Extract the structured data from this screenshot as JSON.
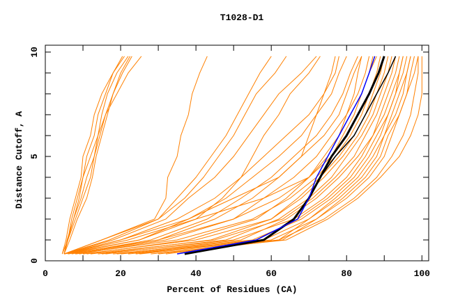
{
  "chart_data": {
    "type": "line",
    "title": "T1028-D1",
    "xlabel": "Percent of Residues (CA)",
    "ylabel": "Distance Cutoff, A",
    "xlim": [
      0,
      101.8
    ],
    "ylim": [
      0,
      10.33
    ],
    "x_ticks": [
      0,
      20,
      40,
      60,
      80,
      100
    ],
    "x_tick_labels": [
      "0",
      "20",
      "40",
      "60",
      "80",
      "100"
    ],
    "x_minor_step": 10,
    "y_ticks": [
      0,
      5,
      10
    ],
    "y_tick_labels": [
      "0",
      "5",
      "10"
    ],
    "y_minor_step": 1,
    "grid": false,
    "colors": {
      "models": "#ff8000",
      "highlight_blue": "#0000ff",
      "highlight_black": "#000000"
    },
    "y_levels": [
      0.33,
      1,
      2,
      3,
      4,
      5,
      6,
      7,
      8,
      9,
      9.8
    ],
    "series_note": "each series gives the percent of residues (x) at each y_levels cutoff",
    "orange_series": [
      [
        5,
        25,
        40,
        58,
        70,
        76,
        79,
        82,
        84,
        86,
        88
      ],
      [
        6,
        30,
        50,
        62,
        70,
        75,
        78,
        80,
        82,
        83,
        84
      ],
      [
        8,
        35,
        55,
        65,
        72,
        77,
        81,
        84,
        86,
        88,
        89
      ],
      [
        10,
        40,
        60,
        68,
        74,
        79,
        83,
        86,
        88,
        90,
        91
      ],
      [
        12,
        45,
        63,
        71,
        77,
        82,
        85,
        88,
        90,
        92,
        93
      ],
      [
        15,
        50,
        66,
        74,
        80,
        84,
        87,
        90,
        92,
        94,
        95
      ],
      [
        18,
        55,
        68,
        76,
        82,
        86,
        89,
        91,
        93,
        95,
        96
      ],
      [
        20,
        58,
        70,
        78,
        84,
        88,
        90,
        92,
        94,
        96,
        97
      ],
      [
        22,
        60,
        72,
        80,
        86,
        90,
        92,
        94,
        96,
        97,
        98
      ],
      [
        25,
        62,
        74,
        82,
        88,
        92,
        95,
        97,
        98,
        99,
        99
      ],
      [
        28,
        64,
        75,
        83,
        89,
        94,
        97,
        99,
        100,
        100,
        100
      ],
      [
        8,
        30,
        45,
        55,
        62,
        68,
        74,
        78,
        80,
        82,
        84
      ],
      [
        6,
        25,
        38,
        48,
        55,
        62,
        68,
        72,
        76,
        78,
        80
      ],
      [
        5,
        20,
        35,
        45,
        52,
        58,
        64,
        70,
        74,
        77,
        78
      ],
      [
        7,
        28,
        43,
        52,
        60,
        66,
        72,
        76,
        79,
        81,
        83
      ],
      [
        9,
        32,
        50,
        58,
        66,
        72,
        76,
        80,
        83,
        85,
        86
      ],
      [
        11,
        38,
        56,
        64,
        70,
        74,
        78,
        81,
        84,
        86,
        87
      ],
      [
        14,
        44,
        60,
        67,
        73,
        78,
        82,
        85,
        87,
        89,
        90
      ],
      [
        16,
        48,
        62,
        70,
        76,
        80,
        84,
        87,
        89,
        91,
        92
      ],
      [
        19,
        52,
        64,
        72,
        78,
        83,
        87,
        89,
        91,
        93,
        94
      ],
      [
        24,
        56,
        67,
        75,
        81,
        85,
        88,
        91,
        93,
        94,
        95
      ],
      [
        30,
        62,
        70,
        77,
        83,
        87,
        90,
        93,
        95,
        96,
        97
      ],
      [
        32,
        63,
        72,
        79,
        85,
        89,
        91,
        94,
        96,
        98,
        99
      ],
      [
        5,
        22,
        40,
        47,
        52,
        55,
        58,
        62,
        65,
        70,
        73
      ],
      [
        5,
        18,
        32,
        38,
        45,
        50,
        54,
        58,
        62,
        68,
        72
      ],
      [
        5,
        20,
        38,
        50,
        62,
        68,
        70,
        72,
        74,
        76,
        77
      ],
      [
        5,
        15,
        30,
        35,
        40,
        44,
        48,
        51,
        54,
        57,
        60
      ],
      [
        5,
        17,
        30,
        37,
        42,
        46,
        50,
        53,
        56,
        61,
        64
      ],
      [
        5,
        15,
        29,
        32,
        32.5,
        35,
        36,
        38,
        39,
        41,
        43
      ],
      [
        4.5,
        5.5,
        6.5,
        8,
        9.5,
        10,
        12,
        13,
        15,
        18,
        20.5
      ],
      [
        4.5,
        6,
        7,
        8.5,
        10,
        11,
        13,
        14,
        16,
        18,
        21
      ],
      [
        5,
        5.8,
        7.5,
        9.5,
        11,
        13,
        14,
        15,
        16.5,
        19,
        22
      ],
      [
        5,
        6,
        8,
        10,
        12,
        13,
        14.5,
        16,
        18,
        20,
        22.5
      ],
      [
        5,
        6.5,
        8.5,
        11,
        12.5,
        13.5,
        15,
        16.5,
        18,
        20.5,
        23
      ],
      [
        5,
        6,
        7.5,
        9,
        10,
        12,
        14,
        16,
        19,
        22,
        25.5
      ]
    ],
    "blue_series": [
      35,
      56,
      67,
      70,
      72,
      75,
      78,
      81,
      84,
      86,
      87.5
    ],
    "black_series_thick": [
      37,
      58,
      66,
      70,
      73,
      76,
      80,
      83,
      86,
      88.5,
      90
    ],
    "black_series_thin": [
      37,
      58,
      66,
      70,
      73,
      77,
      82,
      85,
      88,
      91,
      93
    ]
  }
}
